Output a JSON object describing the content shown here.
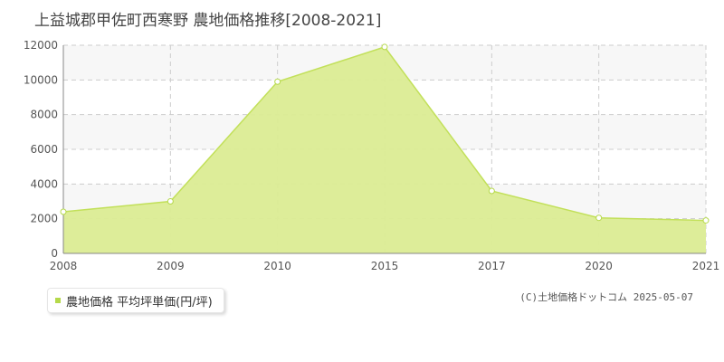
{
  "title": "上益城郡甲佐町西寒野 農地価格推移[2008-2021]",
  "legend": {
    "label": "農地価格 平均坪単価(円/坪)"
  },
  "credit": "(C)土地価格ドットコム 2025-05-07",
  "colors": {
    "fill": "#dbec94",
    "line": "#c2e05a",
    "band": "#f7f7f7",
    "grid": "#cccccc",
    "axis": "#888888",
    "marker": "#b5d94a"
  },
  "chart_data": {
    "type": "area",
    "categories": [
      "2008",
      "2009",
      "2010",
      "2015",
      "2017",
      "2020",
      "2021"
    ],
    "series": [
      {
        "name": "農地価格 平均坪単価(円/坪)",
        "values": [
          2400,
          3000,
          9900,
          11900,
          3600,
          2050,
          1900
        ]
      }
    ],
    "yticks": [
      "0",
      "2000",
      "4000",
      "6000",
      "8000",
      "10000",
      "12000"
    ],
    "ylim": [
      0,
      12000
    ],
    "grid": true,
    "legend_position": "bottom-left"
  }
}
